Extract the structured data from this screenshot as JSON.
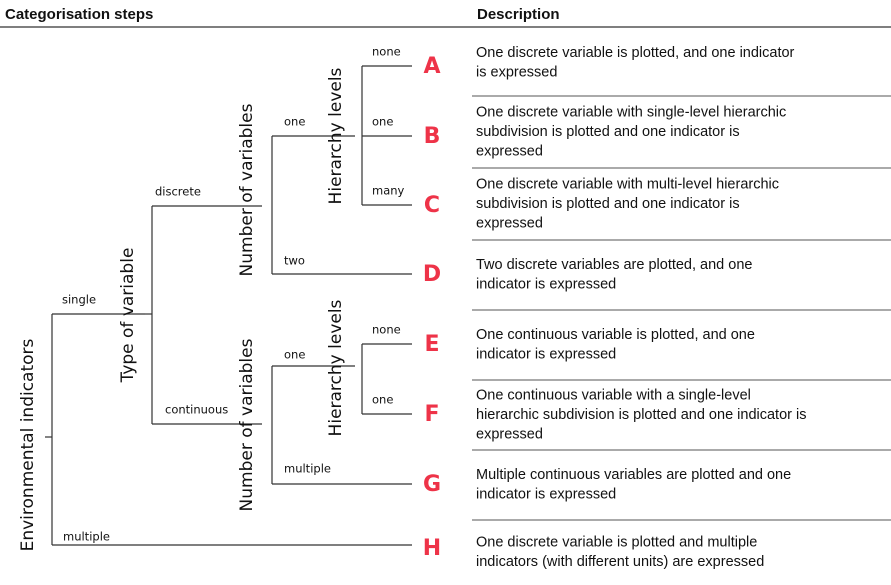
{
  "header": {
    "steps": "Categorisation steps",
    "description": "Description"
  },
  "tree": {
    "root": "Environmental indicators",
    "root_branches": [
      "single",
      "multiple"
    ],
    "type": "Type of variable",
    "type_branches": [
      "discrete",
      "continuous"
    ],
    "discrete": {
      "label": "Number of variables",
      "branches": [
        "one",
        "two"
      ],
      "hierarchy": {
        "label": "Hierarchy levels",
        "branches": [
          "none",
          "one",
          "many"
        ]
      }
    },
    "continuous": {
      "label": "Number of variables",
      "branches": [
        "one",
        "multiple"
      ],
      "hierarchy": {
        "label": "Hierarchy levels",
        "branches": [
          "none",
          "one"
        ]
      }
    }
  },
  "rows": [
    {
      "letter": "A",
      "description": [
        "One discrete variable is plotted, and one indicator",
        "is expressed"
      ]
    },
    {
      "letter": "B",
      "description": [
        "One discrete variable with single-level hierarchic",
        "subdivision is plotted and one indicator is",
        "expressed"
      ]
    },
    {
      "letter": "C",
      "description": [
        "One discrete variable with multi-level hierarchic",
        "subdivision is plotted and one indicator is",
        "expressed"
      ]
    },
    {
      "letter": "D",
      "description": [
        "Two discrete variables are plotted, and one",
        "indicator is expressed"
      ]
    },
    {
      "letter": "E",
      "description": [
        "One continuous variable is plotted, and one",
        "indicator is expressed"
      ]
    },
    {
      "letter": "F",
      "description": [
        "One continuous variable with a single-level",
        "hierarchic subdivision is plotted and one indicator is",
        "expressed"
      ]
    },
    {
      "letter": "G",
      "description": [
        "Multiple continuous variables are plotted and one",
        "indicator is expressed"
      ]
    },
    {
      "letter": "H",
      "description": [
        "One discrete variable is plotted and multiple",
        "indicators (with different units) are expressed"
      ]
    }
  ]
}
